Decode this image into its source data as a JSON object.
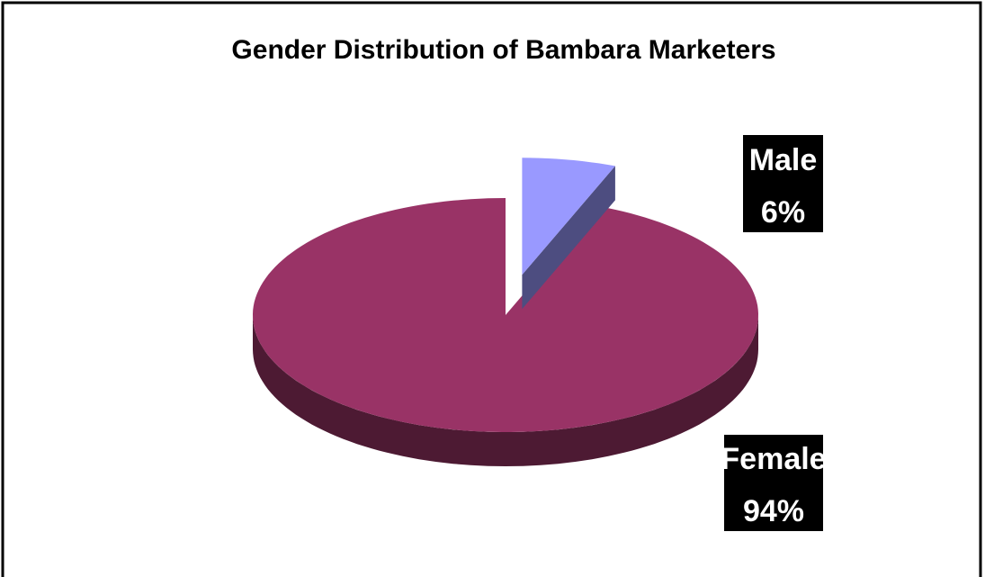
{
  "chart_data": {
    "type": "pie",
    "title": "Gender Distribution of Bambara Marketers",
    "categories": [
      "Male",
      "Female"
    ],
    "values": [
      6,
      94
    ],
    "value_labels": [
      "6%",
      "94%"
    ],
    "colors": [
      "#9999ff",
      "#993366"
    ],
    "side_colors": [
      "#4d4d80",
      "#4d1a33"
    ]
  }
}
